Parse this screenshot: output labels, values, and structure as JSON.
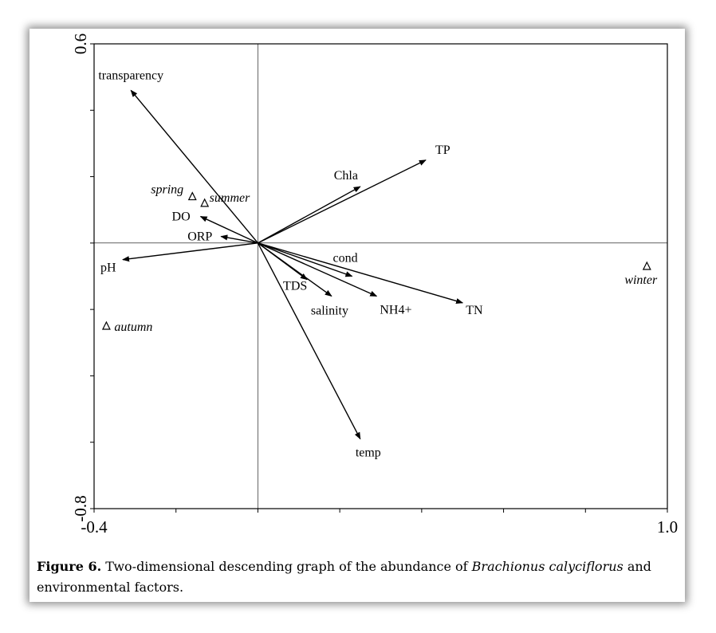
{
  "chart_data": {
    "type": "biplot",
    "title": "",
    "xlabel": "",
    "ylabel": "",
    "xlim": [
      -0.4,
      1.0
    ],
    "ylim": [
      -0.8,
      0.6
    ],
    "x_tick_labels": [
      "-0.4",
      "1.0"
    ],
    "y_tick_labels": [
      "0.6",
      "-0.8"
    ],
    "vectors": [
      {
        "name": "transparency",
        "x": -0.31,
        "y": 0.46
      },
      {
        "name": "TP",
        "x": 0.41,
        "y": 0.25
      },
      {
        "name": "Chla",
        "x": 0.25,
        "y": 0.17
      },
      {
        "name": "DO",
        "x": -0.14,
        "y": 0.08
      },
      {
        "name": "ORP",
        "x": -0.09,
        "y": 0.02
      },
      {
        "name": "pH",
        "x": -0.33,
        "y": -0.05
      },
      {
        "name": "cond",
        "x": 0.23,
        "y": -0.1
      },
      {
        "name": "TDS",
        "x": 0.12,
        "y": -0.11
      },
      {
        "name": "salinity",
        "x": 0.18,
        "y": -0.16
      },
      {
        "name": "NH4+",
        "x": 0.29,
        "y": -0.16
      },
      {
        "name": "TN",
        "x": 0.5,
        "y": -0.18
      },
      {
        "name": "temp",
        "x": 0.25,
        "y": -0.59
      }
    ],
    "samples": [
      {
        "name": "spring",
        "x": -0.16,
        "y": 0.14
      },
      {
        "name": "summer",
        "x": -0.13,
        "y": 0.12
      },
      {
        "name": "autumn",
        "x": -0.37,
        "y": -0.25
      },
      {
        "name": "winter",
        "x": 0.95,
        "y": -0.07
      }
    ],
    "reference_lines": {
      "x": 0,
      "y": 0
    },
    "grid": false
  },
  "caption": {
    "label": "Figure 6.",
    "text_before": " Two-dimensional descending graph of the abundance of ",
    "species": "Brachionus calyciflorus",
    "text_after": " and environmental factors."
  }
}
